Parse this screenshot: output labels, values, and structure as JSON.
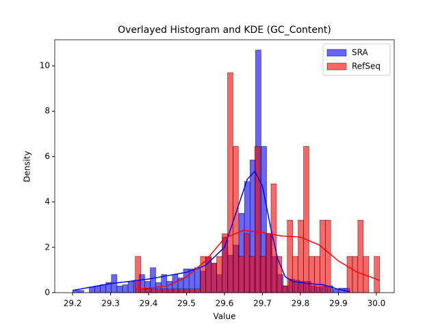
{
  "chart_data": {
    "type": "histogram",
    "title": "Overlayed Histogram and KDE (GC_Content)",
    "x_label": "Value",
    "y_label": "Density",
    "xlim": [
      29.153,
      30.047
    ],
    "ylim": [
      0,
      11.15
    ],
    "xticks": [
      29.2,
      29.3,
      29.4,
      29.5,
      29.6,
      29.7,
      29.8,
      29.9,
      {
        "value": 30,
        "label": "30.0"
      }
    ],
    "yticks": [
      0,
      2,
      4,
      6,
      8,
      10
    ],
    "legend": "upper right",
    "series": [
      {
        "name": "SRA",
        "color": "#0000ff",
        "bins": [
          29.2,
          29.2146,
          29.2292,
          29.2438,
          29.2584,
          29.273,
          29.2876,
          29.3022,
          29.3168,
          29.3314,
          29.346,
          29.3606,
          29.3752,
          29.3898,
          29.4044,
          29.419,
          29.4336,
          29.4482,
          29.4628,
          29.4774,
          29.492,
          29.5066,
          29.5212,
          29.5358,
          29.5504,
          29.565,
          29.5796,
          29.5942,
          29.6088,
          29.6234,
          29.638,
          29.6526,
          29.6672,
          29.6818,
          29.6964,
          29.711,
          29.7256,
          29.7402,
          29.7548,
          29.7694,
          29.784,
          29.7986,
          29.8132,
          29.8278,
          29.8424,
          29.857,
          29.8716,
          29.8862,
          29.9008,
          29.9154,
          29.93
        ],
        "values": [
          0.1,
          0.1,
          0,
          0.25,
          0.3,
          0.35,
          0.45,
          0.8,
          0.3,
          0.35,
          0.5,
          0.55,
          0.8,
          0.5,
          1.1,
          0.45,
          0.8,
          0.5,
          0.8,
          0.65,
          1.05,
          1.05,
          1.1,
          0.95,
          1.55,
          1.3,
          0.8,
          2.45,
          1.65,
          2.1,
          3.5,
          4.9,
          5.85,
          10.7,
          6.45,
          2.6,
          1.6,
          0.8,
          0.3,
          0.6,
          0.55,
          0.5,
          0.5,
          0.3,
          0.25,
          0.3,
          0.3,
          0.15,
          0.2,
          0.2
        ],
        "kde_x": [
          29.2,
          29.25,
          29.3,
          29.35,
          29.4,
          29.45,
          29.5,
          29.55,
          29.6,
          29.63,
          29.66,
          29.68,
          29.7,
          29.72,
          29.74,
          29.76,
          29.78,
          29.82,
          29.86,
          29.9,
          29.93
        ],
        "kde_y": [
          0.1,
          0.25,
          0.4,
          0.5,
          0.6,
          0.75,
          0.9,
          1.2,
          2.0,
          3.5,
          5.0,
          5.35,
          4.7,
          3.0,
          1.5,
          0.7,
          0.5,
          0.4,
          0.35,
          0.15,
          0.05
        ]
      },
      {
        "name": "RefSeq",
        "color": "#ff0000",
        "bins": [
          29.365,
          29.3793,
          29.3936,
          29.4079,
          29.4222,
          29.4365,
          29.4508,
          29.4651,
          29.4794,
          29.4937,
          29.508,
          29.5223,
          29.5366,
          29.5509,
          29.5652,
          29.5795,
          29.5938,
          29.6081,
          29.6224,
          29.6367,
          29.651,
          29.6653,
          29.6796,
          29.6939,
          29.7082,
          29.7225,
          29.7368,
          29.7511,
          29.7654,
          29.7797,
          29.794,
          29.8083,
          29.8226,
          29.8369,
          29.8512,
          29.8655,
          29.8798,
          29.8941,
          29.9084,
          29.9227,
          29.937,
          29.9513,
          29.9656,
          29.9799,
          29.9942,
          30.0085
        ],
        "values": [
          1.6,
          0.16,
          0.16,
          0.16,
          0.16,
          0.16,
          0.16,
          0.16,
          0.16,
          0.16,
          0.16,
          0.16,
          1.6,
          1.6,
          1.3,
          1.6,
          2.6,
          9.7,
          6.45,
          1.6,
          2.6,
          1.6,
          6.45,
          1.6,
          2.6,
          4.8,
          1.6,
          0.3,
          3.2,
          1.6,
          3.2,
          6.45,
          1.6,
          1.6,
          3.2,
          3.2,
          0,
          0,
          0,
          1.6,
          1.6,
          3.2,
          1.6,
          0,
          1.6
        ],
        "kde_x": [
          29.365,
          29.4,
          29.45,
          29.5,
          29.55,
          29.6,
          29.65,
          29.7,
          29.75,
          29.8,
          29.85,
          29.9,
          29.95,
          30.008
        ],
        "kde_y": [
          0.15,
          0.2,
          0.3,
          0.7,
          1.4,
          2.4,
          2.75,
          2.65,
          2.5,
          2.45,
          2.1,
          1.4,
          0.9,
          0.55
        ]
      }
    ]
  }
}
